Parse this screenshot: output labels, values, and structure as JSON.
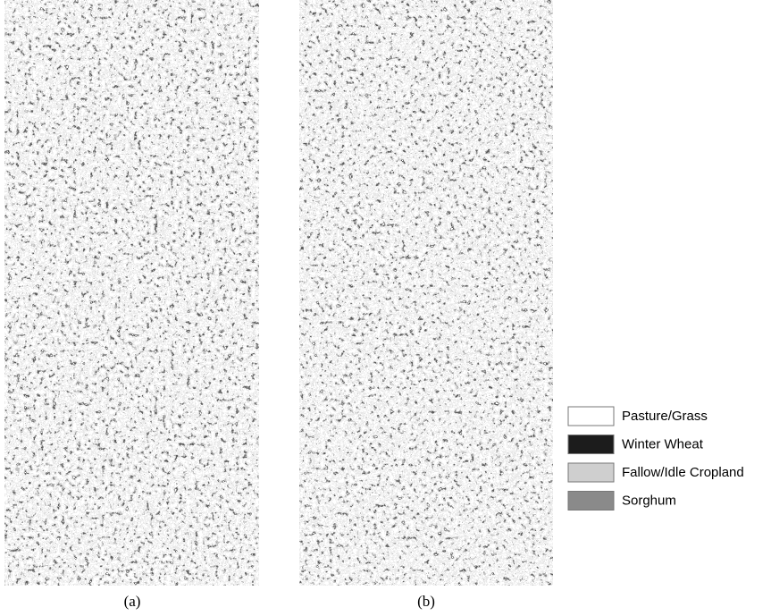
{
  "panels": [
    {
      "label": "(a)"
    },
    {
      "label": "(b)"
    }
  ],
  "legend": [
    {
      "label": "Pasture/Grass",
      "color": "#ffffff"
    },
    {
      "label": "Winter Wheat",
      "color": "#1c1c1c"
    },
    {
      "label": "Fallow/Idle Cropland",
      "color": "#cfcfcf"
    },
    {
      "label": "Sorghum",
      "color": "#8a8a8a"
    }
  ]
}
